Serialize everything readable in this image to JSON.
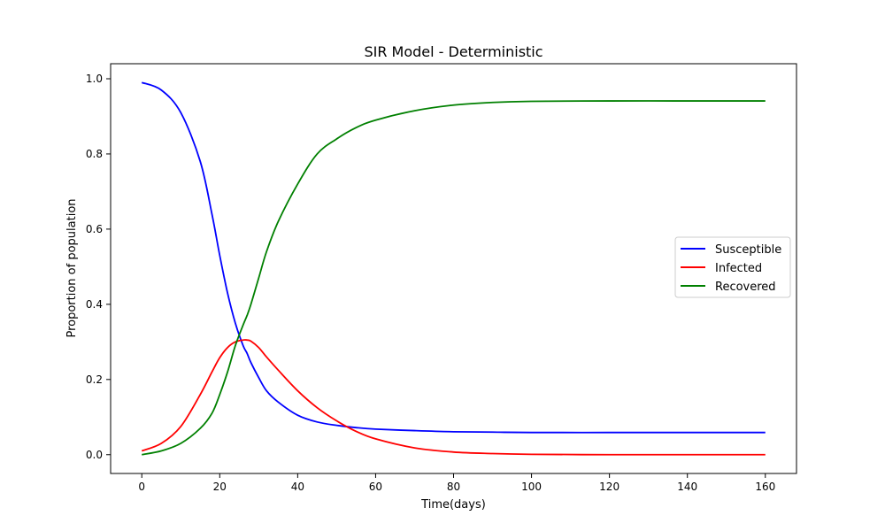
{
  "chart_data": {
    "type": "line",
    "title": "SIR Model - Deterministic",
    "xlabel": "Time(days)",
    "ylabel": "Proportion of population",
    "xlim": [
      -8,
      168
    ],
    "ylim": [
      -0.05,
      1.04
    ],
    "x_ticks": [
      0,
      20,
      40,
      60,
      80,
      100,
      120,
      140,
      160
    ],
    "x_tick_labels": [
      "0",
      "20",
      "40",
      "60",
      "80",
      "100",
      "120",
      "140",
      "160"
    ],
    "y_ticks": [
      0.0,
      0.2,
      0.4,
      0.6,
      0.8,
      1.0
    ],
    "y_tick_labels": [
      "0.0",
      "0.2",
      "0.4",
      "0.6",
      "0.8",
      "1.0"
    ],
    "grid": false,
    "legend_position": "center-right",
    "x": [
      0,
      5,
      10,
      15,
      18,
      20,
      22,
      24,
      26,
      27,
      28,
      30,
      32,
      35,
      40,
      45,
      50,
      55,
      60,
      70,
      80,
      90,
      100,
      120,
      140,
      160
    ],
    "series": [
      {
        "name": "Susceptible",
        "color": "#0000ff",
        "values": [
          0.99,
          0.97,
          0.91,
          0.78,
          0.64,
          0.53,
          0.43,
          0.35,
          0.29,
          0.27,
          0.245,
          0.205,
          0.17,
          0.14,
          0.105,
          0.087,
          0.078,
          0.072,
          0.068,
          0.064,
          0.061,
          0.06,
          0.059,
          0.059,
          0.059,
          0.059
        ]
      },
      {
        "name": "Infected",
        "color": "#ff0000",
        "values": [
          0.01,
          0.03,
          0.075,
          0.16,
          0.22,
          0.258,
          0.285,
          0.3,
          0.305,
          0.305,
          0.302,
          0.285,
          0.26,
          0.225,
          0.17,
          0.125,
          0.09,
          0.062,
          0.042,
          0.018,
          0.007,
          0.003,
          0.001,
          0.0,
          0.0,
          0.0
        ]
      },
      {
        "name": "Recovered",
        "color": "#008000",
        "values": [
          0.0,
          0.01,
          0.03,
          0.07,
          0.11,
          0.16,
          0.22,
          0.29,
          0.345,
          0.37,
          0.4,
          0.47,
          0.54,
          0.62,
          0.72,
          0.8,
          0.84,
          0.87,
          0.89,
          0.915,
          0.93,
          0.937,
          0.94,
          0.941,
          0.941,
          0.941
        ]
      }
    ]
  }
}
